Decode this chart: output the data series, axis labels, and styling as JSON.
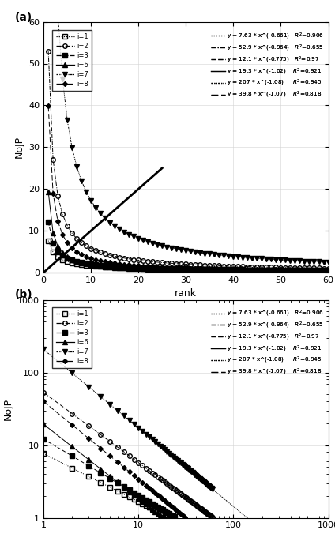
{
  "series": [
    {
      "label": "i=1",
      "a": 7.63,
      "b": -0.661,
      "marker": "s",
      "fillstyle": "none",
      "markersize": 4
    },
    {
      "label": "i=2",
      "a": 52.9,
      "b": -0.964,
      "marker": "o",
      "fillstyle": "none",
      "markersize": 4
    },
    {
      "label": "i=3",
      "a": 12.1,
      "b": -0.775,
      "marker": "s",
      "fillstyle": "full",
      "markersize": 4
    },
    {
      "label": "i=6",
      "a": 19.3,
      "b": -1.02,
      "marker": "^",
      "fillstyle": "full",
      "markersize": 4
    },
    {
      "label": "i=7",
      "a": 207.0,
      "b": -1.08,
      "marker": "v",
      "fillstyle": "full",
      "markersize": 5
    },
    {
      "label": "i=8",
      "a": 39.8,
      "b": -1.07,
      "marker": "D",
      "fillstyle": "full",
      "markersize": 3
    }
  ],
  "eq_labels": [
    "y = 7.63 * x^(-0.661)   R2= 0.906",
    "y = 52.9 * x^(-0.964)   R2= 0.655",
    "y = 12.1 * x^(-0.775)   R2= 0.97",
    "y = 19.3 * x^(-1.02)    R2= 0.921",
    "y = 207 * x^(-1.08)     R2= 0.945",
    "y = 39.8 * x^(-1.07)    R2= 0.818"
  ],
  "panel_a": {
    "xlabel": "rank",
    "ylabel": "NoJP",
    "xlim": [
      0,
      60
    ],
    "ylim": [
      0,
      60
    ],
    "xticks": [
      0,
      10,
      20,
      30,
      40,
      50,
      60
    ],
    "yticks": [
      0,
      10,
      20,
      30,
      40,
      50,
      60
    ],
    "label": "(a)"
  },
  "panel_b": {
    "ylabel": "NoJP",
    "xlim": [
      1,
      1000
    ],
    "ylim": [
      1,
      1000
    ],
    "label": "(b)"
  },
  "straight_line": {
    "x1": 0,
    "y1": 0,
    "x2": 25,
    "y2": 25
  }
}
